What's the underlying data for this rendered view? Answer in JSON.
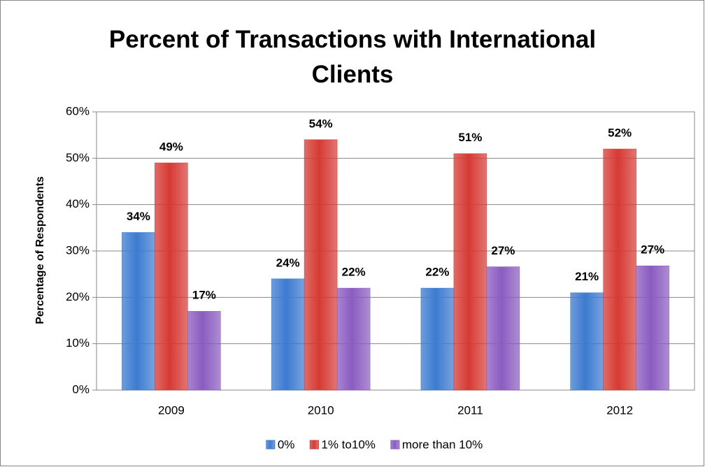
{
  "chart_data": {
    "type": "bar",
    "title": "Percent of Transactions with International Clients",
    "y_label": "Percentage of Respondents",
    "categories": [
      "2009",
      "2010",
      "2011",
      "2012"
    ],
    "series": [
      {
        "name": "0%",
        "color": "#3c7bd0",
        "values": [
          34,
          24,
          22,
          21
        ],
        "value_labels": [
          "34%",
          "24%",
          "22%",
          "21%"
        ]
      },
      {
        "name": "1% to10%",
        "color": "#d63a34",
        "values": [
          49,
          54,
          51,
          52
        ],
        "value_labels": [
          "49%",
          "54%",
          "51%",
          "52%"
        ]
      },
      {
        "name": "more than 10%",
        "color": "#8a5cc0",
        "values": [
          17,
          22,
          26.6,
          26.8
        ],
        "value_labels": [
          "17%",
          "22%",
          "27%",
          "27%"
        ]
      }
    ],
    "ylim": [
      0,
      60
    ],
    "yticks": [
      {
        "value": 0,
        "label": "0%"
      },
      {
        "value": 10,
        "label": "10%"
      },
      {
        "value": 20,
        "label": "20%"
      },
      {
        "value": 30,
        "label": "30%"
      },
      {
        "value": 40,
        "label": "40%"
      },
      {
        "value": 50,
        "label": "50%"
      },
      {
        "value": 60,
        "label": "60%"
      }
    ],
    "grid": true,
    "legend": "bottom"
  }
}
